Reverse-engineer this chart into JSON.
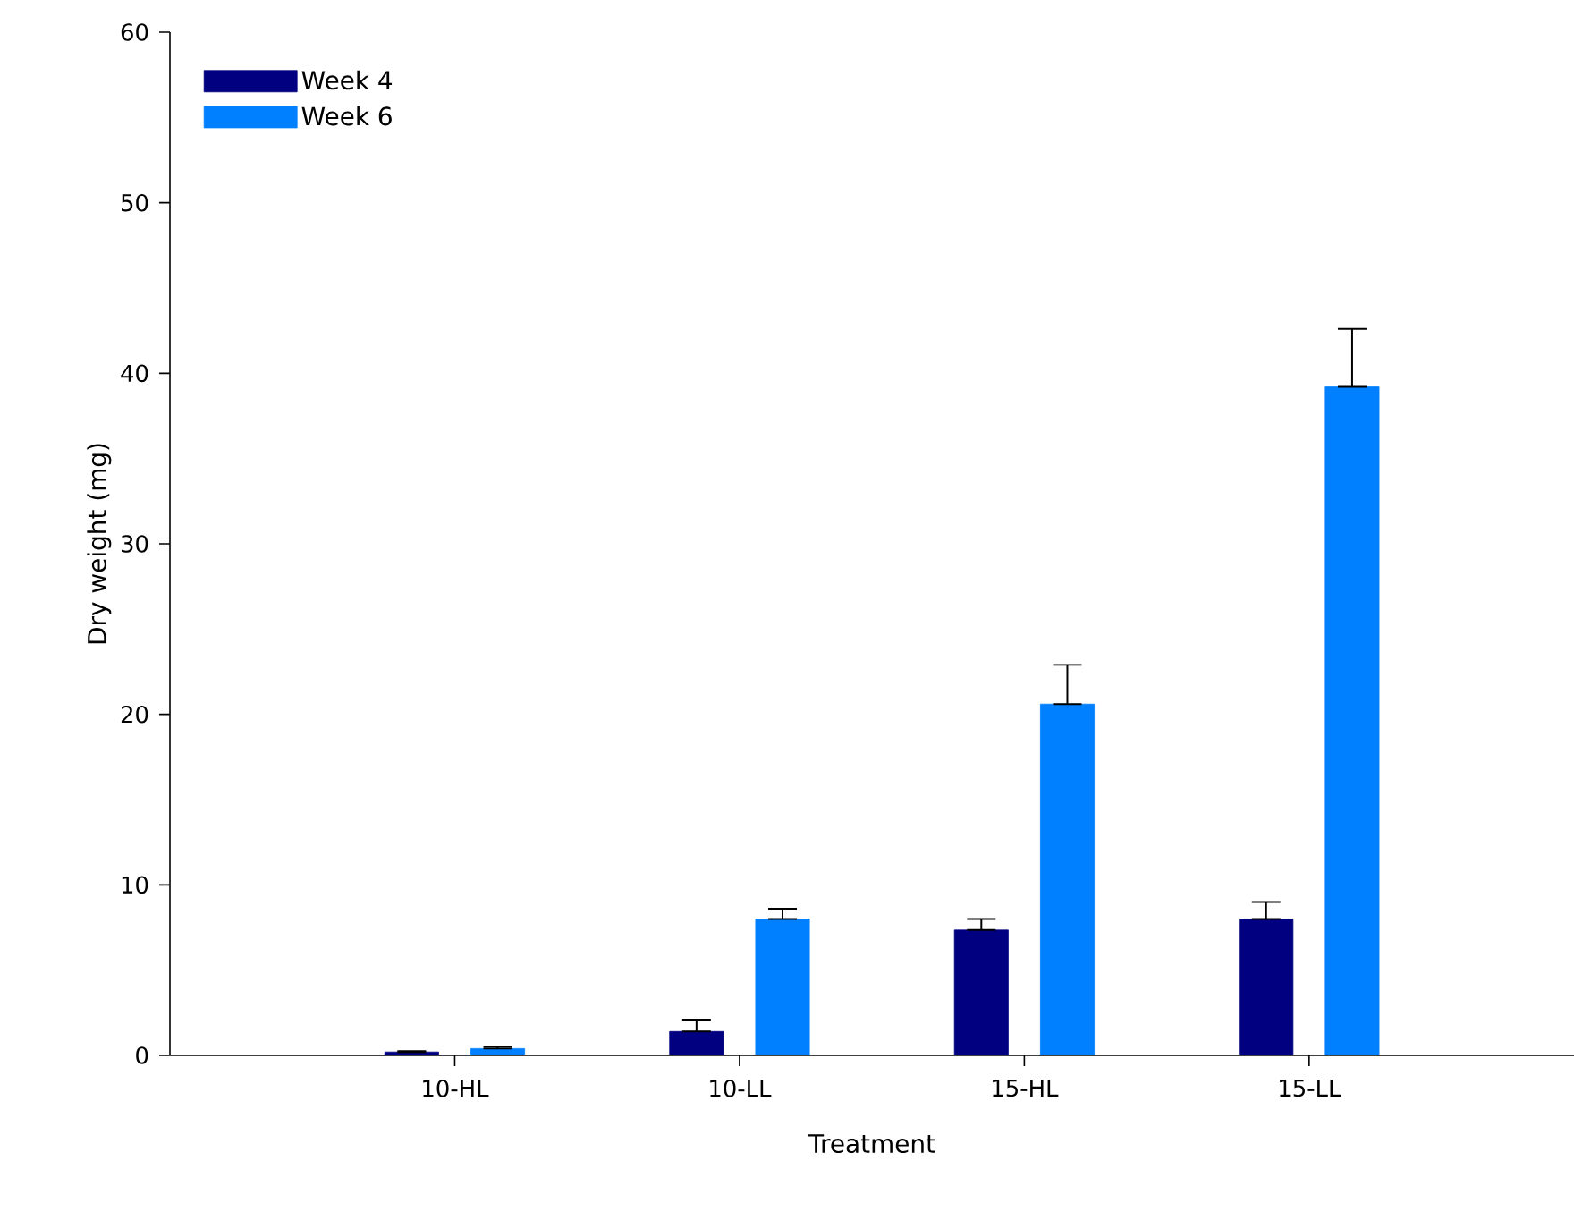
{
  "chart_data": {
    "type": "bar",
    "xlabel": "Treatment",
    "ylabel": "Dry weight (mg)",
    "categories": [
      "10-HL",
      "10-LL",
      "15-HL",
      "15-LL"
    ],
    "series": [
      {
        "name": "Week 4",
        "color": "#000080",
        "values": [
          0.2,
          1.4,
          7.35,
          8.0
        ],
        "errors": [
          [
            0.2,
            0.25
          ],
          [
            1.4,
            2.1
          ],
          [
            7.35,
            8.0
          ],
          [
            8.0,
            9.0
          ]
        ]
      },
      {
        "name": "Week 6",
        "color": "#0080ff",
        "values": [
          0.4,
          8.0,
          20.6,
          39.2
        ],
        "errors": [
          [
            0.4,
            0.5
          ],
          [
            8.0,
            8.6
          ],
          [
            20.6,
            22.9
          ],
          [
            39.2,
            42.6
          ]
        ]
      }
    ],
    "ylim": [
      0,
      60
    ],
    "yticks": [
      0,
      10,
      20,
      30,
      40,
      50,
      60
    ],
    "legend": "top left",
    "grid": false
  }
}
